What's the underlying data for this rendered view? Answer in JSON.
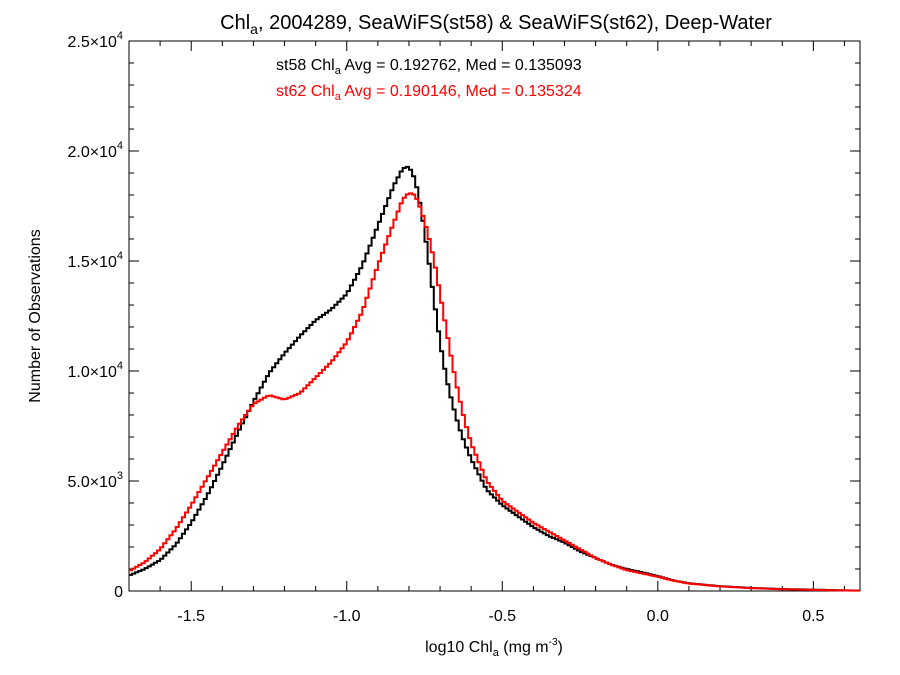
{
  "chart_data": {
    "type": "line",
    "title": {
      "prefix": "Chl",
      "sub": "a",
      "suffix": ", 2004289, SeaWiFS(st58) & SeaWiFS(st62), Deep-Water"
    },
    "xlabel": {
      "prefix": "log10 Chl",
      "sub": "a",
      "mid": " (mg m",
      "sup": "-3",
      "suffix": ")"
    },
    "ylabel": "Number of Observations",
    "xlim": [
      -1.7,
      0.65
    ],
    "ylim": [
      0,
      25000
    ],
    "step": true,
    "grid": false,
    "x_ticks": [
      "-1.5",
      "-1.0",
      "-0.5",
      "0.0",
      "0.5"
    ],
    "x_tick_values": [
      -1.5,
      -1.0,
      -0.5,
      0.0,
      0.5
    ],
    "y_ticks": [
      {
        "value": 0,
        "mant": "0",
        "exp": ""
      },
      {
        "value": 5000,
        "mant": "5.0×10",
        "exp": "3"
      },
      {
        "value": 10000,
        "mant": "1.0×10",
        "exp": "4"
      },
      {
        "value": 15000,
        "mant": "1.5×10",
        "exp": "4"
      },
      {
        "value": 20000,
        "mant": "2.0×10",
        "exp": "4"
      },
      {
        "value": 25000,
        "mant": "2.5×10",
        "exp": "4"
      }
    ],
    "annotations": [
      {
        "series": "st58",
        "color": "#000000",
        "prefix": "st58 Chl",
        "sub": "a",
        "suffix": " Avg = 0.192762, Med = 0.135093"
      },
      {
        "series": "st62",
        "color": "#ff0000",
        "prefix": "st62 Chl",
        "sub": "a",
        "suffix": " Avg = 0.190146, Med = 0.135324"
      }
    ],
    "series": [
      {
        "name": "st58",
        "color": "#000000",
        "x": [
          -1.7,
          -1.65,
          -1.6,
          -1.55,
          -1.5,
          -1.45,
          -1.4,
          -1.35,
          -1.3,
          -1.25,
          -1.2,
          -1.15,
          -1.1,
          -1.05,
          -1.0,
          -0.95,
          -0.9,
          -0.85,
          -0.82,
          -0.8,
          -0.78,
          -0.76,
          -0.74,
          -0.72,
          -0.7,
          -0.68,
          -0.66,
          -0.64,
          -0.62,
          -0.6,
          -0.55,
          -0.5,
          -0.45,
          -0.4,
          -0.35,
          -0.3,
          -0.25,
          -0.2,
          -0.15,
          -0.1,
          -0.05,
          0.0,
          0.05,
          0.1,
          0.2,
          0.3,
          0.4,
          0.5,
          0.6,
          0.65
        ],
        "y": [
          700,
          1000,
          1400,
          2100,
          3100,
          4300,
          5700,
          7200,
          8600,
          9900,
          10800,
          11600,
          12300,
          12800,
          13500,
          14800,
          16600,
          18400,
          19200,
          19300,
          18700,
          17300,
          15400,
          13300,
          11300,
          9700,
          8500,
          7500,
          6700,
          6000,
          4600,
          3900,
          3400,
          2900,
          2500,
          2200,
          1800,
          1500,
          1200,
          1000,
          850,
          680,
          480,
          350,
          220,
          140,
          90,
          60,
          30,
          20
        ]
      },
      {
        "name": "st62",
        "color": "#ff0000",
        "x": [
          -1.7,
          -1.65,
          -1.6,
          -1.55,
          -1.5,
          -1.45,
          -1.4,
          -1.35,
          -1.3,
          -1.25,
          -1.2,
          -1.15,
          -1.1,
          -1.05,
          -1.0,
          -0.95,
          -0.9,
          -0.85,
          -0.82,
          -0.8,
          -0.78,
          -0.76,
          -0.74,
          -0.72,
          -0.7,
          -0.68,
          -0.66,
          -0.64,
          -0.62,
          -0.6,
          -0.55,
          -0.5,
          -0.45,
          -0.4,
          -0.35,
          -0.3,
          -0.25,
          -0.2,
          -0.15,
          -0.1,
          -0.05,
          0.0,
          0.05,
          0.1,
          0.2,
          0.3,
          0.4,
          0.5,
          0.6,
          0.65
        ],
        "y": [
          900,
          1300,
          1900,
          2800,
          3900,
          5100,
          6300,
          7500,
          8500,
          8900,
          8700,
          9000,
          9700,
          10400,
          11300,
          12700,
          14800,
          16700,
          17800,
          18100,
          18000,
          17300,
          16300,
          15100,
          13500,
          11900,
          10300,
          8900,
          7700,
          6700,
          5000,
          4100,
          3600,
          3100,
          2700,
          2300,
          1900,
          1500,
          1200,
          950,
          800,
          650,
          470,
          340,
          210,
          130,
          80,
          50,
          25,
          15
        ]
      }
    ]
  }
}
